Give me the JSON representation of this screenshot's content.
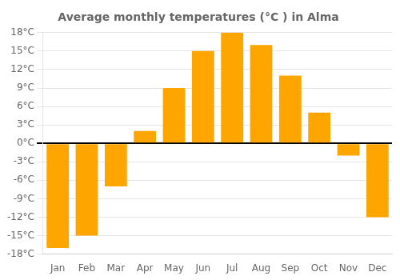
{
  "chart_data": {
    "type": "bar",
    "title": "Average monthly temperatures (°C ) in Alma",
    "categories": [
      "Jan",
      "Feb",
      "Mar",
      "Apr",
      "May",
      "Jun",
      "Jul",
      "Aug",
      "Sep",
      "Oct",
      "Nov",
      "Dec"
    ],
    "values": [
      -17,
      -15,
      -7,
      2,
      9,
      15,
      18,
      16,
      11,
      5,
      -2,
      -12
    ],
    "color": "#FFA500",
    "ylim": [
      -18,
      18
    ],
    "yticks": [
      {
        "value": -18,
        "label": "-18°C"
      },
      {
        "value": -15,
        "label": "-15°C"
      },
      {
        "value": -12,
        "label": "-12°C"
      },
      {
        "value": -9,
        "label": "-9°C"
      },
      {
        "value": -6,
        "label": "-6°C"
      },
      {
        "value": -3,
        "label": "-3°C"
      },
      {
        "value": 0,
        "label": "0°C"
      },
      {
        "value": 3,
        "label": "3°C"
      },
      {
        "value": 6,
        "label": "6°C"
      },
      {
        "value": 9,
        "label": "9°C"
      },
      {
        "value": 12,
        "label": "12°C"
      },
      {
        "value": 15,
        "label": "15°C"
      },
      {
        "value": 18,
        "label": "18°C"
      }
    ],
    "grid": true
  }
}
